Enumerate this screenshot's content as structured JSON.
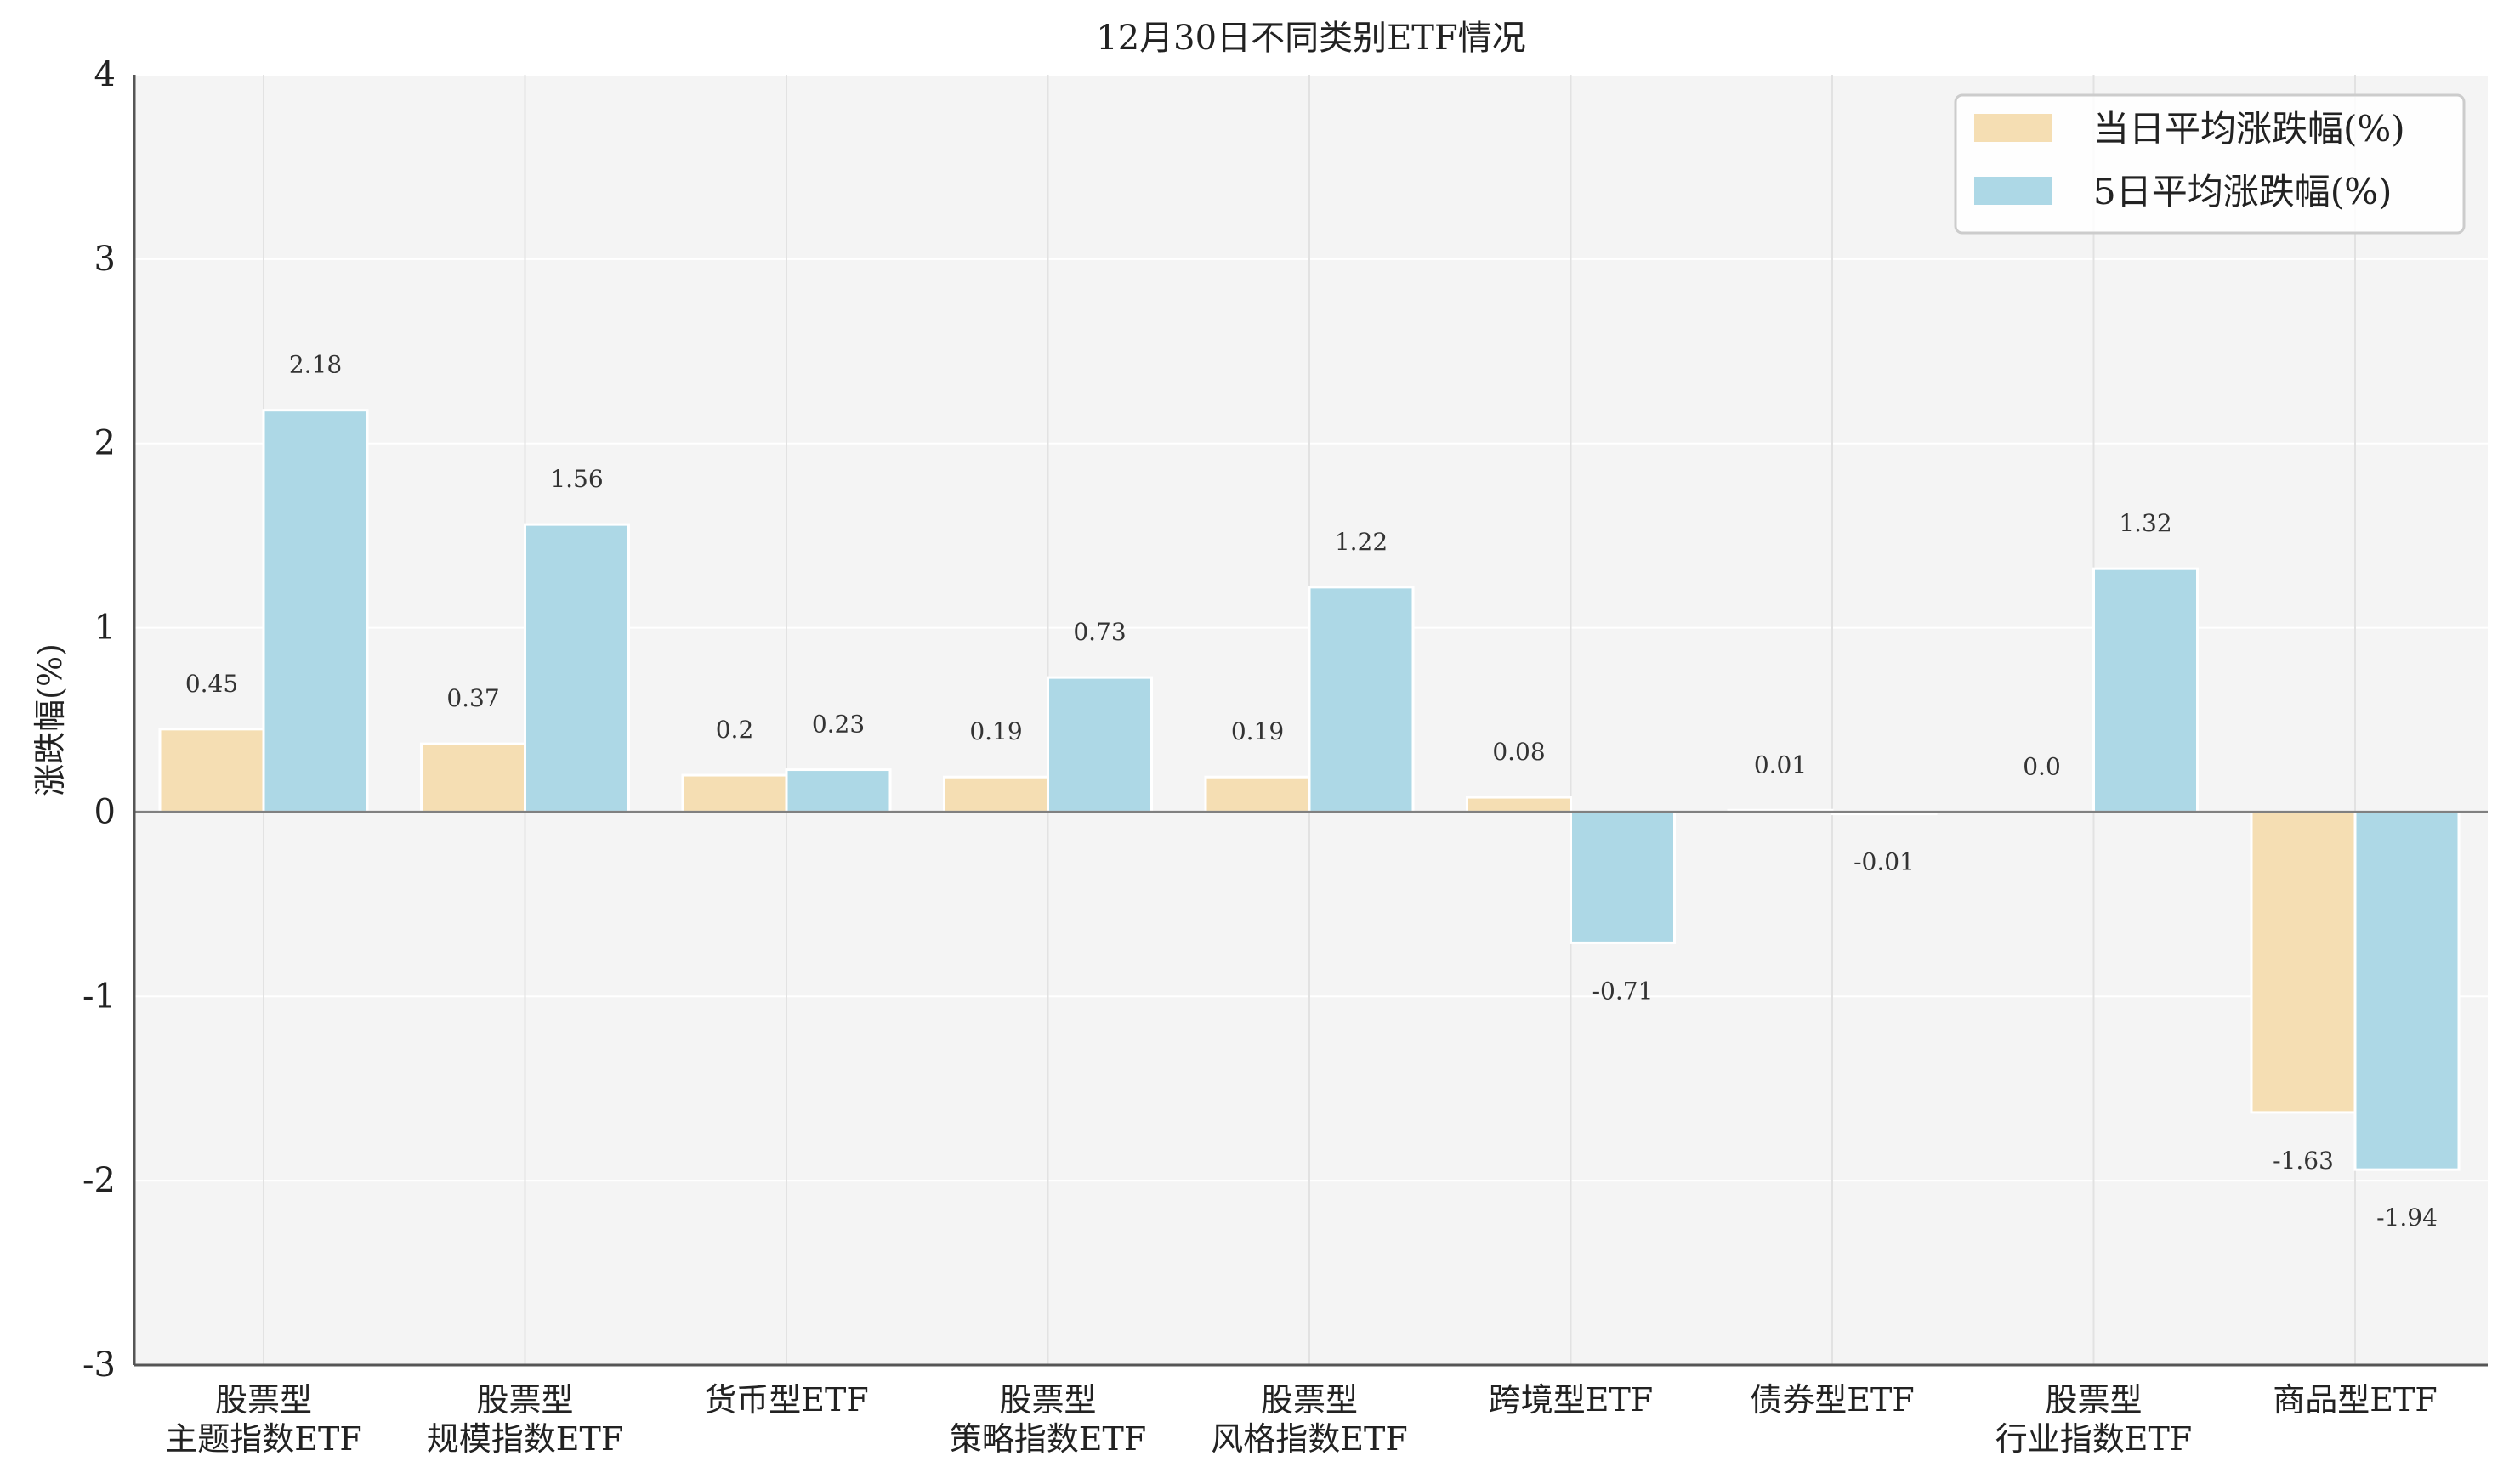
{
  "chart_data": {
    "type": "bar",
    "title": "12月30日不同类别ETF情况",
    "ylabel": "涨跌幅(%)",
    "xlabel": "",
    "ylim": [
      -3,
      4
    ],
    "yticks": [
      -3,
      -2,
      -1,
      0,
      1,
      2,
      3,
      4
    ],
    "grid": true,
    "legend_position": "top-right",
    "categories": [
      [
        "股票型",
        "主题指数ETF"
      ],
      [
        "股票型",
        "规模指数ETF"
      ],
      [
        "货币型ETF"
      ],
      [
        "股票型",
        "策略指数ETF"
      ],
      [
        "股票型",
        "风格指数ETF"
      ],
      [
        "跨境型ETF"
      ],
      [
        "债券型ETF"
      ],
      [
        "股票型",
        "行业指数ETF"
      ],
      [
        "商品型ETF"
      ]
    ],
    "series": [
      {
        "name": "当日平均涨跌幅(%)",
        "color": "#f5deb3",
        "values": [
          0.45,
          0.37,
          0.2,
          0.19,
          0.19,
          0.08,
          0.01,
          0.0,
          -1.63
        ],
        "labels": [
          "0.45",
          "0.37",
          "0.2",
          "0.19",
          "0.19",
          "0.08",
          "0.01",
          "0.0",
          "-1.63"
        ]
      },
      {
        "name": "5日平均涨跌幅(%)",
        "color": "#add8e6",
        "values": [
          2.18,
          1.56,
          0.23,
          0.73,
          1.22,
          -0.71,
          -0.01,
          1.32,
          -1.94
        ],
        "labels": [
          "2.18",
          "1.56",
          "0.23",
          "0.73",
          "1.22",
          "-0.71",
          "-0.01",
          "1.32",
          "-1.94"
        ]
      }
    ]
  }
}
